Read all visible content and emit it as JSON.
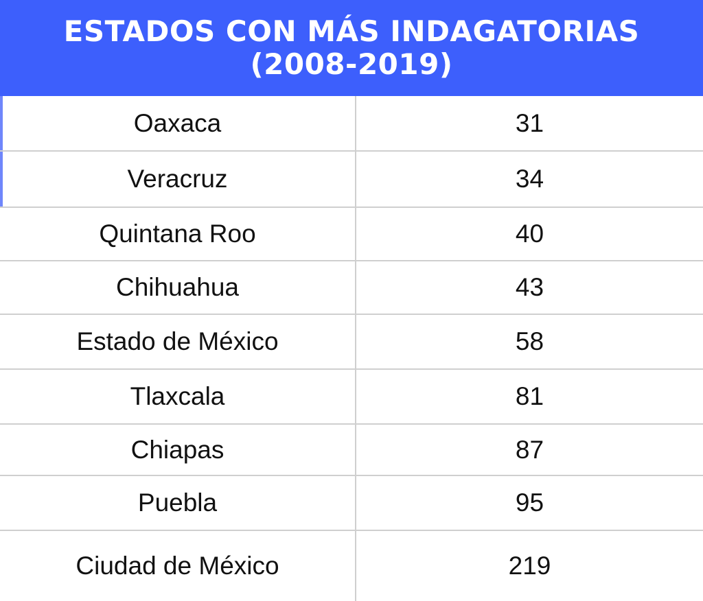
{
  "title": {
    "line1": "ESTADOS CON MÁS INDAGATORIAS",
    "line2": "(2008-2019)"
  },
  "colors": {
    "header_background": "#3d5ffc",
    "header_text": "#ffffff",
    "grid_line": "#cfcfcf",
    "left_edge": "#6f86fb",
    "cell_text": "#111111"
  },
  "chart_data": {
    "type": "table",
    "title": "ESTADOS CON MÁS INDAGATORIAS (2008-2019)",
    "rows": [
      {
        "state": "Oaxaca",
        "value": "31"
      },
      {
        "state": "Veracruz",
        "value": "34"
      },
      {
        "state": "Quintana Roo",
        "value": "40"
      },
      {
        "state": "Chihuahua",
        "value": "43"
      },
      {
        "state": "Estado de México",
        "value": "58"
      },
      {
        "state": "Tlaxcala",
        "value": "81"
      },
      {
        "state": "Chiapas",
        "value": "87"
      },
      {
        "state": "Puebla",
        "value": "95"
      },
      {
        "state": "Ciudad de México",
        "value": "219"
      }
    ]
  }
}
